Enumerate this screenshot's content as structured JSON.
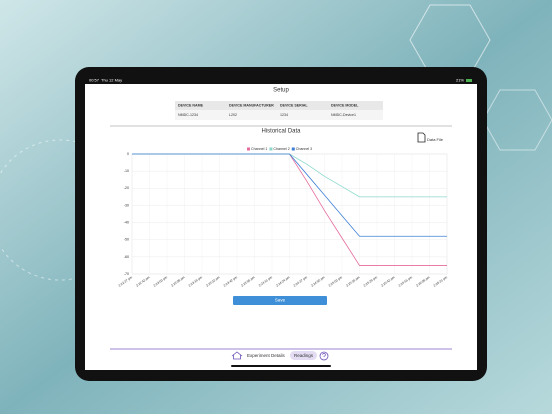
{
  "status_bar": {
    "time": "00:57",
    "date": "Thu 12 May",
    "battery": "21%"
  },
  "header": {
    "title": "Setup"
  },
  "device_table": {
    "columns": [
      "DEVICE NAME",
      "DEVICE MANUFACTURER",
      "DEVICE SERIAL",
      "DEVICE MODEL"
    ],
    "rows": [
      [
        "NMDC-1234",
        "L202",
        "1234",
        "NMDC-Device1"
      ]
    ]
  },
  "section_title": "Historical Data",
  "data_file": "Data File",
  "chart_data": {
    "type": "line",
    "categories": [
      "2:22:27 pm",
      "2:22:42 pm",
      "2:23:03 pm",
      "2:23:08 pm",
      "2:23:19 pm",
      "2:23:32 pm",
      "2:23:42 pm",
      "2:23:56 pm",
      "2:24:11 pm",
      "2:24:24 pm",
      "2:24:37 pm",
      "2:24:50 pm",
      "2:25:03 pm",
      "2:25:16 pm",
      "2:25:29 pm",
      "2:25:42 pm",
      "2:25:55 pm",
      "2:26:08 pm",
      "2:26:21 pm"
    ],
    "series": [
      {
        "name": "Channel 1",
        "color": "#e46b9c",
        "values": [
          0,
          0,
          0,
          0,
          0,
          0,
          0,
          0,
          0,
          0,
          -16,
          -33,
          -49,
          -65,
          -65,
          -65,
          -65,
          -65,
          -65
        ]
      },
      {
        "name": "Channel 2",
        "color": "#8ad8cb",
        "values": [
          0,
          0,
          0,
          0,
          0,
          0,
          0,
          0,
          0,
          0,
          -6,
          -13,
          -19,
          -25,
          -25,
          -25,
          -25,
          -25,
          -25
        ]
      },
      {
        "name": "Channel 3",
        "color": "#3f7fd6",
        "values": [
          0,
          0,
          0,
          0,
          0,
          0,
          0,
          0,
          0,
          0,
          -12,
          -24,
          -36,
          -48,
          -48,
          -48,
          -48,
          -48,
          -48
        ]
      }
    ],
    "ylim": [
      -70,
      0
    ],
    "yticks": [
      0,
      -10,
      -20,
      -30,
      -40,
      -50,
      -60,
      -70
    ],
    "grid": true
  },
  "save_button": "Save",
  "tabs": [
    "Experiment Details",
    "Readings"
  ]
}
